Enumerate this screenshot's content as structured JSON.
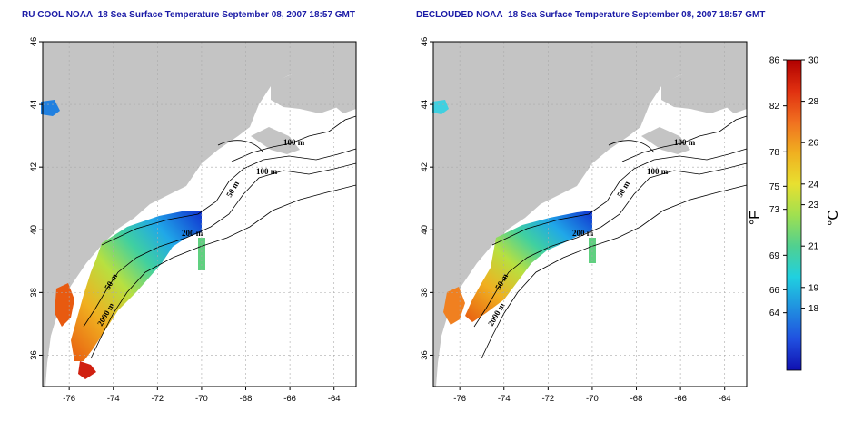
{
  "panels": [
    {
      "id": "left",
      "title": "RU COOL NOAA–18 Sea Surface Temperature September 08, 2007 18:57 GMT",
      "coverage": "full"
    },
    {
      "id": "right",
      "title": "DECLOUDED NOAA–18 Sea Surface Temperature September 08, 2007 18:57 GMT",
      "coverage": "declouded"
    }
  ],
  "map": {
    "lon_range": [
      -77.2,
      -63.0
    ],
    "lat_range": [
      35.0,
      46.0
    ],
    "lon_ticks": [
      "-76",
      "-74",
      "-72",
      "-70",
      "-68",
      "-66",
      "-64"
    ],
    "lat_ticks": [
      "36",
      "38",
      "40",
      "42",
      "44",
      "46"
    ],
    "grid": true,
    "land_color": "#c4c4c4",
    "contour_labels": [
      "100 m",
      "100 m",
      "50 m",
      "200 m",
      "50 m",
      "2000 m"
    ]
  },
  "colorbar": {
    "fahrenheit_ticks": [
      "86",
      "82",
      "78",
      "75",
      "73",
      "69",
      "66",
      "64"
    ],
    "celsius_ticks": [
      "30",
      "28",
      "26",
      "24",
      "23",
      "21",
      "19",
      "18"
    ],
    "fahrenheit_unit": "°F",
    "celsius_unit": "°C",
    "colors": [
      "#b00000",
      "#e03010",
      "#f07020",
      "#f0b020",
      "#e8e030",
      "#a0e050",
      "#50d090",
      "#20d0e0",
      "#2090e0",
      "#2050e0",
      "#1010b0"
    ]
  }
}
